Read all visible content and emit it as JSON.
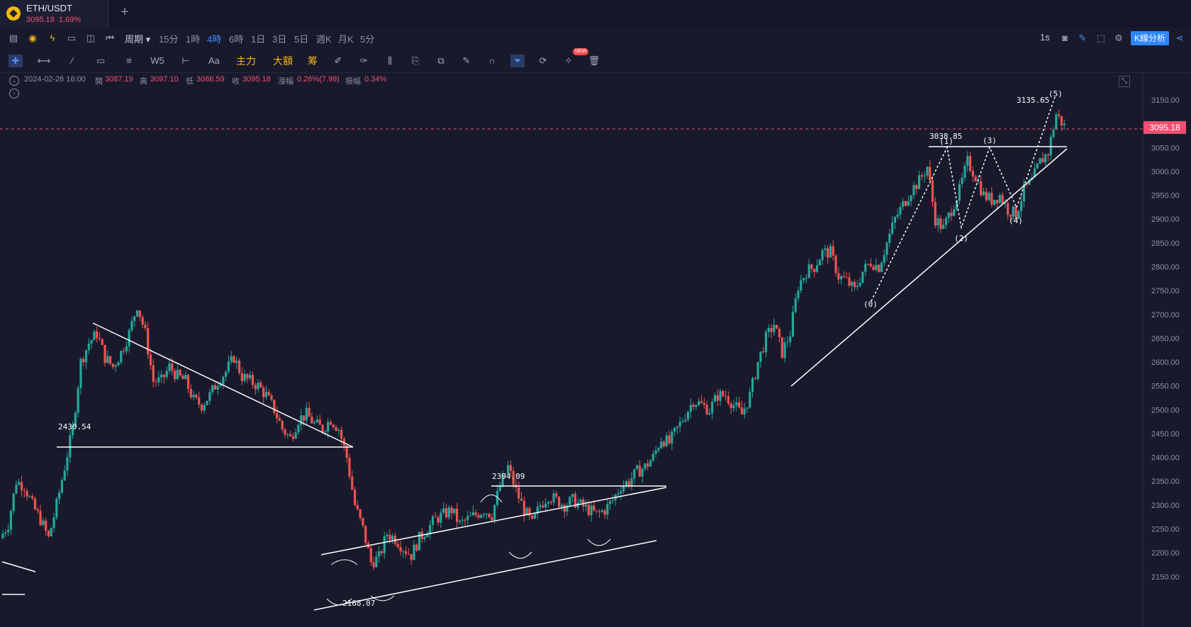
{
  "tab": {
    "symbol": "ETH/USDT",
    "price": "3095.18",
    "change": "1.69%",
    "add": "+"
  },
  "toolbar": {
    "period_label": "周期",
    "periods": [
      "15分",
      "1時",
      "4時",
      "6時",
      "1日",
      "3日",
      "5日",
      "週K",
      "月K",
      "5分"
    ],
    "active_period": "4時",
    "right_label": "1s",
    "k_analysis": "K線分析"
  },
  "drawing_tools": {
    "main_label": "主力",
    "big_label": "大額",
    "chip_label": "筹",
    "aa_label": "Aa",
    "new_badge": "NEW"
  },
  "info": {
    "datetime": "2024-02-26 16:00",
    "open_label": "開",
    "open": "3087.19",
    "high_label": "高",
    "high": "3097.10",
    "low_label": "低",
    "low": "3086.59",
    "close_label": "收",
    "close": "3095.18",
    "change_label": "漲幅",
    "change": "0.26%(7.99)",
    "amp_label": "振幅",
    "amp": "0.34%"
  },
  "price_axis": {
    "ticks": [
      "3150.00",
      "3050.00",
      "3000.00",
      "2950.00",
      "2900.00",
      "2850.00",
      "2800.00",
      "2750.00",
      "2700.00",
      "2650.00",
      "2600.00",
      "2550.00",
      "2500.00",
      "2450.00",
      "2400.00",
      "2350.00",
      "2300.00",
      "2250.00",
      "2200.00",
      "2150.00"
    ],
    "current": "3095.18"
  },
  "annotations": {
    "left_level": "2430.54",
    "channel_high": "2394.09",
    "channel_low": "2168.07",
    "wave_top": "3038.85",
    "peak": "3135.65",
    "waves": [
      "(0)",
      "(1)",
      "(2)",
      "(3)",
      "(4)",
      "(5)"
    ]
  },
  "colors": {
    "bg": "#181a2c",
    "up": "#26a69a",
    "down": "#ef5350",
    "accent": "#2f86ff"
  },
  "chart_data": {
    "type": "candlestick",
    "symbol": "ETH/USDT",
    "interval": "4時",
    "ylim": [
      2130,
      3175
    ],
    "key_levels": [
      2430.54,
      2394.09,
      2168.07,
      3038.85,
      3135.65
    ],
    "path": [
      2230,
      2260,
      2350,
      2340,
      2300,
      2270,
      2230,
      2300,
      2380,
      2460,
      2600,
      2640,
      2660,
      2610,
      2590,
      2620,
      2660,
      2720,
      2660,
      2560,
      2560,
      2590,
      2570,
      2560,
      2520,
      2510,
      2530,
      2560,
      2580,
      2610,
      2570,
      2560,
      2550,
      2530,
      2500,
      2460,
      2440,
      2480,
      2490,
      2470,
      2460,
      2480,
      2460,
      2400,
      2300,
      2250,
      2180,
      2190,
      2240,
      2230,
      2210,
      2195,
      2230,
      2250,
      2270,
      2280,
      2290,
      2260,
      2270,
      2280,
      2290,
      2280,
      2340,
      2380,
      2330,
      2290,
      2260,
      2300,
      2320,
      2310,
      2300,
      2310,
      2300,
      2290,
      2280,
      2290,
      2310,
      2340,
      2350,
      2370,
      2380,
      2400,
      2440,
      2430,
      2460,
      2490,
      2520,
      2510,
      2500,
      2530,
      2530,
      2510,
      2490,
      2530,
      2600,
      2650,
      2680,
      2620,
      2660,
      2760,
      2790,
      2800,
      2830,
      2830,
      2780,
      2770,
      2750,
      2790,
      2810,
      2800,
      2850,
      2900,
      2930,
      2960,
      2980,
      3010,
      2900,
      2880,
      2920,
      2960,
      3020,
      2990,
      2950,
      2940,
      2950,
      2920,
      2910,
      2960,
      2980,
      3020,
      3040,
      3120,
      3095
    ]
  }
}
